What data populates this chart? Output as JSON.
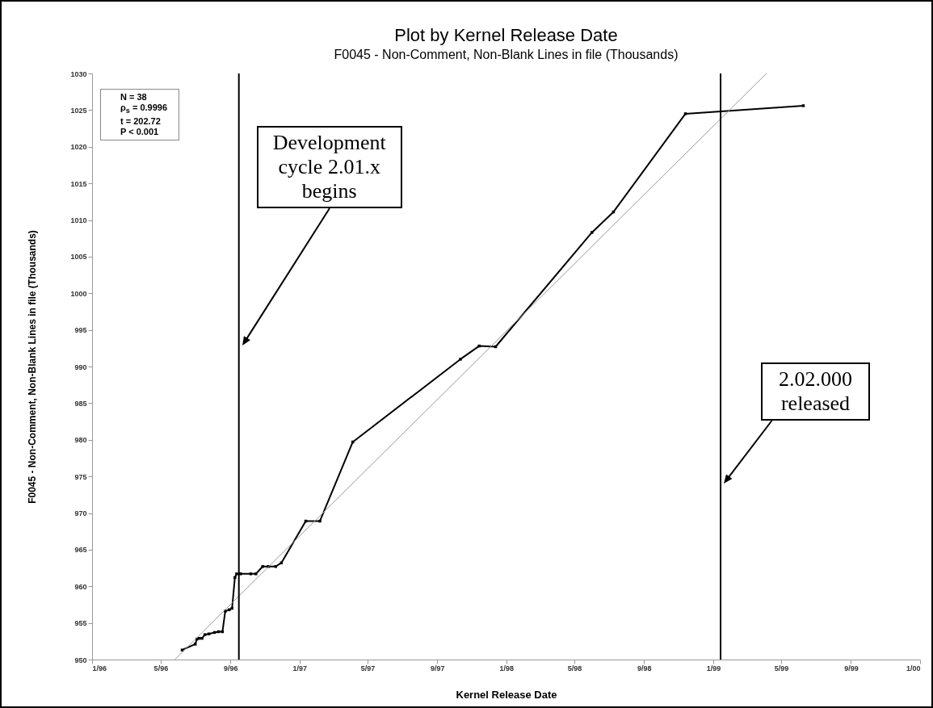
{
  "chart_data": {
    "type": "line",
    "title": "Plot by Kernel Release Date",
    "subtitle": "F0045 - Non-Comment, Non-Blank Lines in file (Thousands)",
    "xlabel": "Kernel Release Date",
    "ylabel": "F0045 - Non-Comment, Non-Blank Lines in file (Thousands)",
    "xlim": [
      "1996-01-01",
      "2000-01-01"
    ],
    "xticks": [
      {
        "value": "1996-01-01",
        "label": "1/96"
      },
      {
        "value": "1996-05-01",
        "label": "5/96"
      },
      {
        "value": "1996-09-01",
        "label": "9/96"
      },
      {
        "value": "1997-01-01",
        "label": "1/97"
      },
      {
        "value": "1997-05-01",
        "label": "5/97"
      },
      {
        "value": "1997-09-01",
        "label": "9/97"
      },
      {
        "value": "1998-01-01",
        "label": "1/98"
      },
      {
        "value": "1998-05-01",
        "label": "5/98"
      },
      {
        "value": "1998-09-01",
        "label": "9/98"
      },
      {
        "value": "1999-01-01",
        "label": "1/99"
      },
      {
        "value": "1999-05-01",
        "label": "5/99"
      },
      {
        "value": "1999-09-01",
        "label": "9/99"
      },
      {
        "value": "2000-01-01",
        "label": "1/00"
      }
    ],
    "ylim": [
      950,
      1030
    ],
    "yticks": [
      950,
      955,
      960,
      965,
      970,
      975,
      980,
      985,
      990,
      995,
      1000,
      1005,
      1010,
      1015,
      1020,
      1025,
      1030
    ],
    "marker": "square",
    "series": [
      {
        "color": "#000000",
        "x": [
          "1996-06-08",
          "1996-07-01",
          "1996-07-04",
          "1996-07-08",
          "1996-07-13",
          "1996-07-18",
          "1996-07-25",
          "1996-08-04",
          "1996-08-11",
          "1996-08-18",
          "1996-08-23",
          "1996-08-30",
          "1996-09-04",
          "1996-09-09",
          "1996-09-12",
          "1996-09-19",
          "1996-10-07",
          "1996-10-16",
          "1996-10-28",
          "1996-11-07",
          "1996-11-20",
          "1996-11-30",
          "1997-01-12",
          "1997-02-06",
          "1997-04-05",
          "1997-10-12",
          "1997-11-14",
          "1997-12-13",
          "1998-06-01",
          "1998-07-09",
          "1998-11-13",
          "1999-06-09"
        ],
        "values": [
          951.3,
          952.1,
          952.8,
          952.9,
          952.9,
          953.4,
          953.5,
          953.7,
          953.8,
          953.8,
          956.6,
          956.8,
          957.0,
          961.2,
          961.7,
          961.7,
          961.7,
          961.7,
          962.7,
          962.7,
          962.7,
          963.2,
          968.9,
          968.9,
          979.7,
          991.0,
          992.8,
          992.7,
          1008.3,
          1011.1,
          1024.5,
          1025.6
        ]
      },
      {
        "type": "line",
        "marker": "none",
        "color": "#999999",
        "x": [
          "1996-05-26",
          "1999-04-05"
        ],
        "values": [
          950,
          1030
        ]
      }
    ],
    "ref_lines": [
      {
        "axis": "x",
        "value": "1996-09-16",
        "color": "#000000"
      },
      {
        "axis": "x",
        "value": "1999-01-14",
        "color": "#000000"
      }
    ],
    "annotations": [
      "N = 38",
      "ρ$_{s}$ = 0.9996",
      "t = 202.72",
      "P < 0.001",
      "Development cycle 2.01.x begins",
      "2.02.000 released"
    ]
  }
}
